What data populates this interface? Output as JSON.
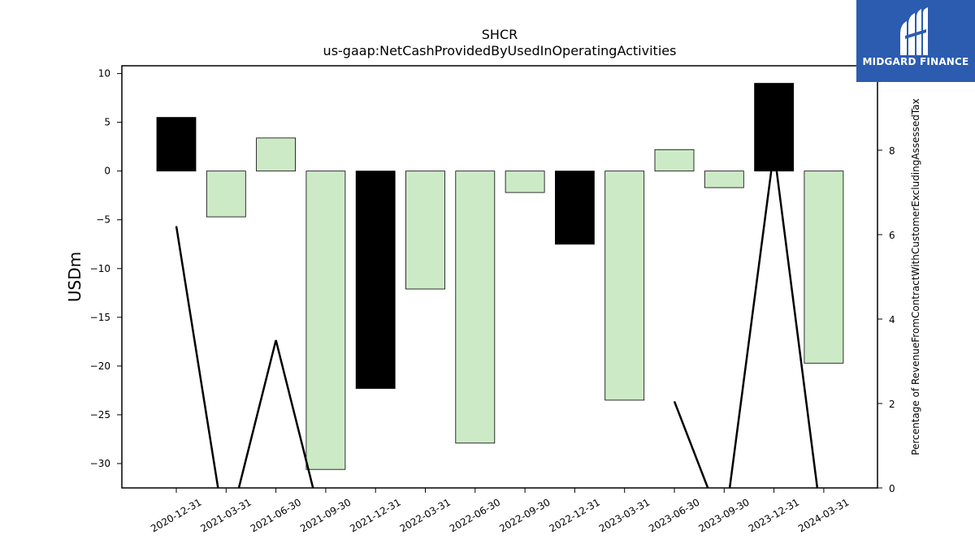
{
  "chart_data": {
    "type": "bar",
    "title": "SHCR",
    "subtitle": "us-gaap:NetCashProvidedByUsedInOperatingActivities",
    "ylabel": "USDm",
    "y2label": "Percentage of RevenueFromContractWithCustomerExcludingAssessedTax",
    "categories": [
      "2020-12-31",
      "2021-03-31",
      "2021-06-30",
      "2021-09-30",
      "2021-12-31",
      "2022-03-31",
      "2022-06-30",
      "2022-09-30",
      "2022-12-31",
      "2023-03-31",
      "2023-06-30",
      "2023-09-30",
      "2023-12-31",
      "2024-03-31"
    ],
    "values": [
      5.5,
      -4.7,
      3.4,
      -30.6,
      -22.3,
      -12.1,
      -27.9,
      -2.2,
      -7.5,
      -23.5,
      2.2,
      -1.7,
      9.0,
      -19.7
    ],
    "highlight": [
      true,
      false,
      false,
      false,
      true,
      false,
      false,
      false,
      true,
      false,
      false,
      false,
      true,
      false
    ],
    "ylim": [
      -32.5,
      10.8
    ],
    "yticks": [
      10,
      5,
      0,
      -5,
      -10,
      -15,
      -20,
      -25,
      -30
    ],
    "y2lim": [
      0,
      10
    ],
    "y2ticks": [
      0,
      2,
      4,
      6,
      8,
      10
    ],
    "line_series": {
      "values": [
        6.2,
        -1.2,
        3.5,
        -1.2,
        null,
        null,
        null,
        null,
        null,
        null,
        2.05,
        -1.0,
        8.0,
        -1.2
      ]
    },
    "colors": {
      "highlight_bar": "#000000",
      "normal_bar": "#cdeac7",
      "bar_edge": "#000000",
      "line": "#000000"
    }
  },
  "logo": {
    "text": "MIDGARD FINANCE",
    "background": "#2b5cb0"
  }
}
